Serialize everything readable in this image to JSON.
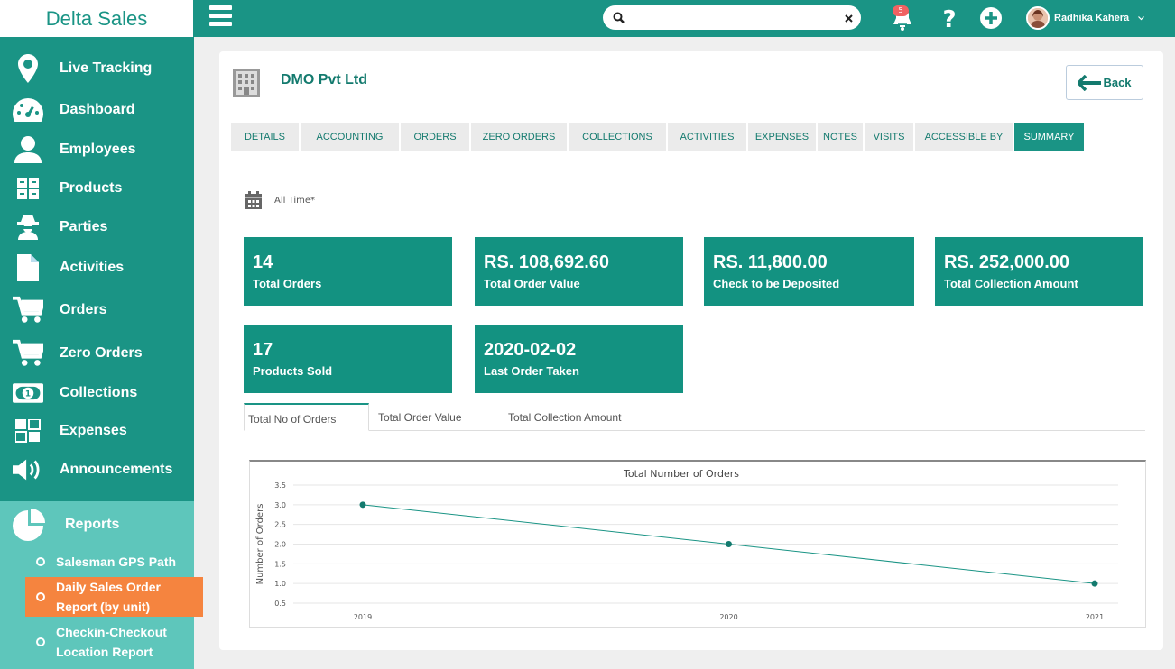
{
  "app": {
    "brand": "Delta Sales"
  },
  "sidebar": {
    "items": [
      {
        "label": "Live Tracking",
        "icon": "map-pin-icon"
      },
      {
        "label": "Dashboard",
        "icon": "gauge-icon"
      },
      {
        "label": "Employees",
        "icon": "user-icon"
      },
      {
        "label": "Products",
        "icon": "grid-icon"
      },
      {
        "label": "Parties",
        "icon": "spy-icon"
      },
      {
        "label": "Activities",
        "icon": "file-icon"
      },
      {
        "label": "Orders",
        "icon": "cart-icon"
      },
      {
        "label": "Zero Orders",
        "icon": "cart-icon"
      },
      {
        "label": "Collections",
        "icon": "money-icon"
      },
      {
        "label": "Expenses",
        "icon": "tiles-icon"
      },
      {
        "label": "Announcements",
        "icon": "megaphone-icon"
      }
    ],
    "reports": {
      "label": "Reports",
      "sub": [
        "Salesman GPS Path",
        "Daily Sales Order Report (by unit)",
        "Checkin-Checkout Location Report"
      ]
    }
  },
  "topbar": {
    "search_placeholder": "",
    "notification_count": "5",
    "user_name": "Radhika Kahera"
  },
  "page": {
    "company": "DMO Pvt Ltd",
    "back_label": "Back",
    "tabs": [
      "DETAILS",
      "ACCOUNTING",
      "ORDERS",
      "ZERO ORDERS",
      "COLLECTIONS",
      "ACTIVITIES",
      "EXPENSES",
      "NOTES",
      "VISITS",
      "ACCESSIBLE BY",
      "SUMMARY"
    ],
    "active_tab": "SUMMARY",
    "date_filter": "All Time*",
    "stats": [
      {
        "value": "14",
        "label": "Total Orders"
      },
      {
        "value": "RS. 108,692.60",
        "label": "Total Order Value"
      },
      {
        "value": "RS. 11,800.00",
        "label": "Check to be Deposited"
      },
      {
        "value": "RS. 252,000.00",
        "label": "Total Collection Amount"
      },
      {
        "value": "17",
        "label": "Products Sold"
      },
      {
        "value": "2020-02-02",
        "label": "Last Order Taken"
      }
    ],
    "chart_tabs": [
      "Total No of Orders",
      "Total Order Value",
      "Total Collection Amount"
    ]
  },
  "colors": {
    "primary": "#1a9485",
    "accent": "#f5843f",
    "reports_bg": "#5ec6bb"
  },
  "chart_data": {
    "type": "line",
    "title": "Total Number of Orders",
    "xlabel": "",
    "ylabel": "Number of Orders",
    "categories": [
      "2019",
      "2020",
      "2021"
    ],
    "series": [
      {
        "values": [
          3.0,
          2.0,
          1.0
        ]
      }
    ],
    "ylim": [
      0.5,
      3.5
    ],
    "yticks": [
      "3.5",
      "3.0",
      "2.5",
      "2.0",
      "1.5",
      "1.0",
      "0.5"
    ],
    "grid": true
  }
}
